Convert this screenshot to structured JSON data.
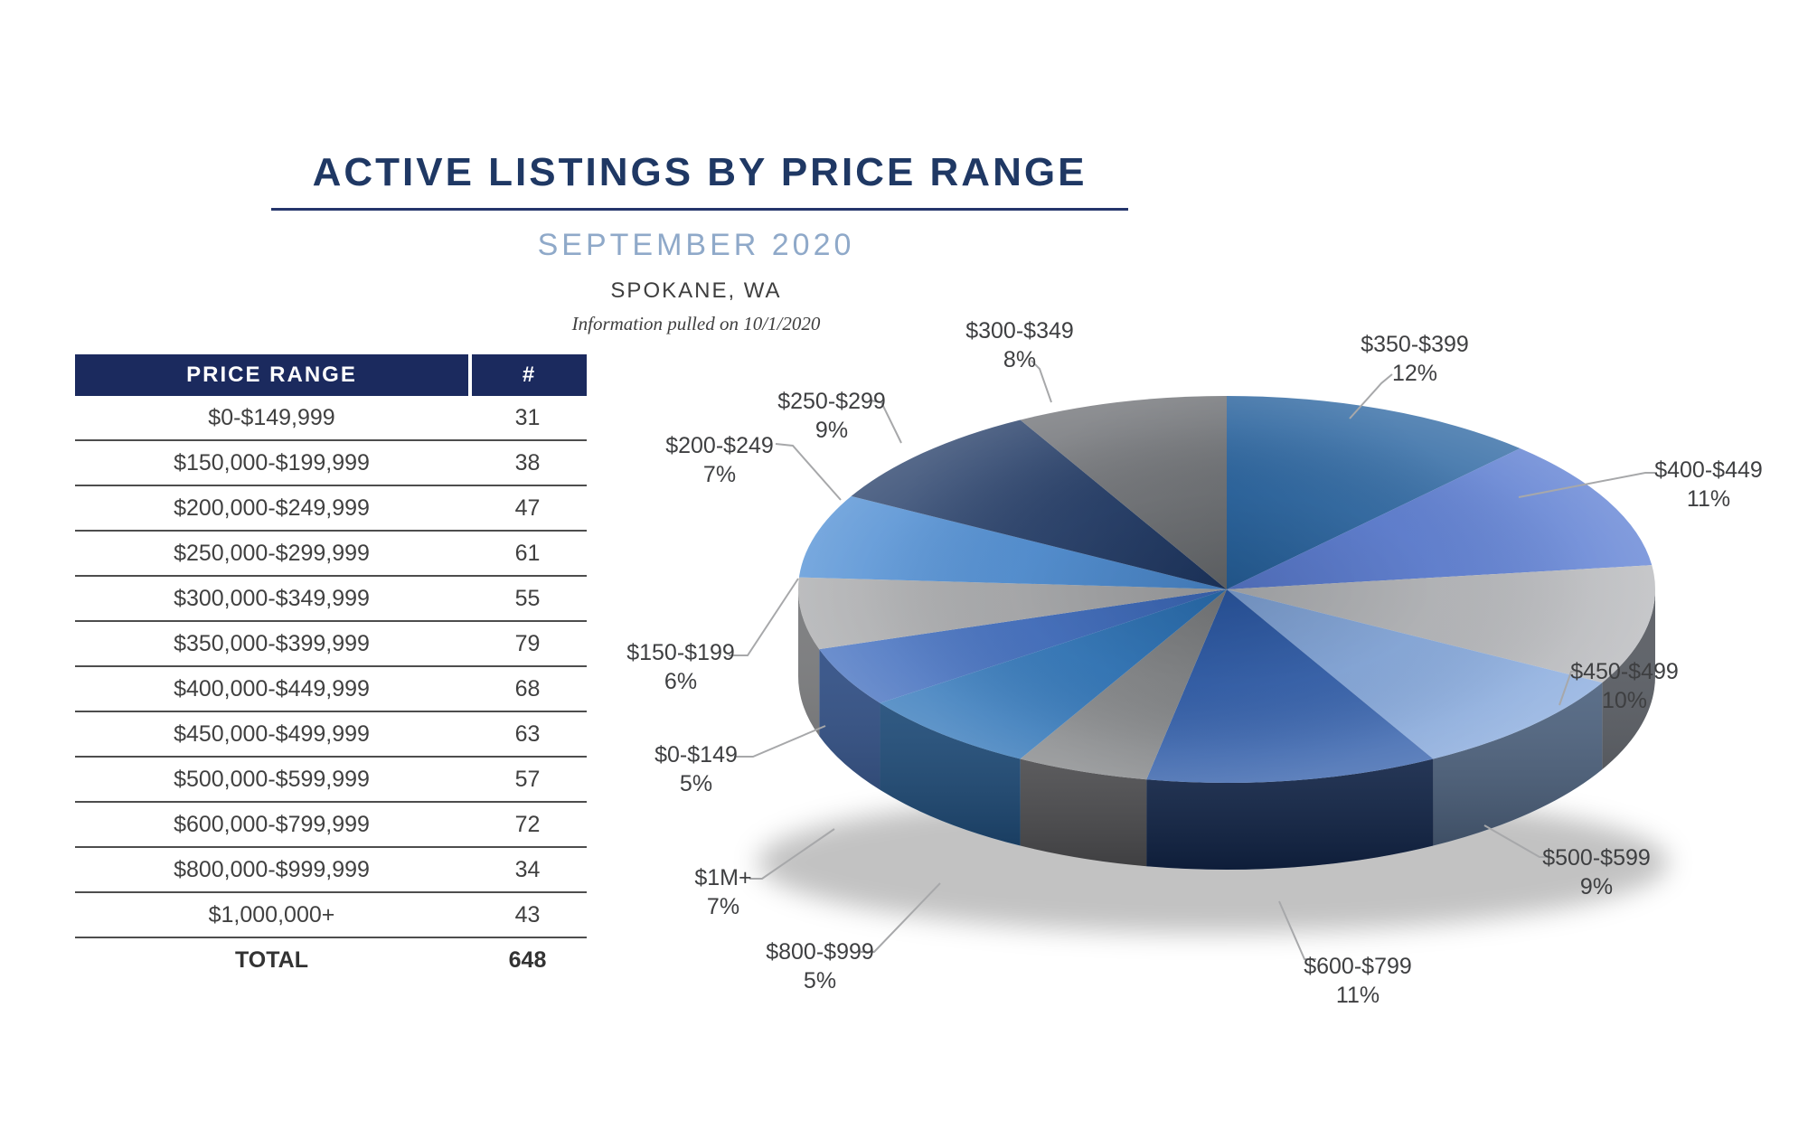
{
  "header": {
    "title": "ACTIVE LISTINGS BY PRICE RANGE",
    "subtitle": "SEPTEMBER 2020",
    "location": "SPOKANE, WA",
    "note": "Information pulled on 10/1/2020"
  },
  "table": {
    "columns": [
      "PRICE RANGE",
      "#"
    ],
    "rows": [
      {
        "range": "$0-$149,999",
        "count": "31"
      },
      {
        "range": "$150,000-$199,999",
        "count": "38"
      },
      {
        "range": "$200,000-$249,999",
        "count": "47"
      },
      {
        "range": "$250,000-$299,999",
        "count": "61"
      },
      {
        "range": "$300,000-$349,999",
        "count": "55"
      },
      {
        "range": "$350,000-$399,999",
        "count": "79"
      },
      {
        "range": "$400,000-$449,999",
        "count": "68"
      },
      {
        "range": "$450,000-$499,999",
        "count": "63"
      },
      {
        "range": "$500,000-$599,999",
        "count": "57"
      },
      {
        "range": "$600,000-$799,999",
        "count": "72"
      },
      {
        "range": "$800,000-$999,999",
        "count": "34"
      },
      {
        "range": "$1,000,000+",
        "count": "43"
      }
    ],
    "total_label": "TOTAL",
    "total_value": "648"
  },
  "chart_data": {
    "type": "pie",
    "style": "3d",
    "legend_position": "none",
    "label_format": "category + percent",
    "start_angle_deg": 234,
    "slices": [
      {
        "label": "$0-$149",
        "pct": 5,
        "color": "#3D6BBE",
        "side_color": "#2A4B85"
      },
      {
        "label": "$150-$199",
        "pct": 6,
        "color": "#A7A8AA",
        "side_color": "#757678"
      },
      {
        "label": "$200-$249",
        "pct": 7,
        "color": "#4C8CD3",
        "side_color": "#35628F"
      },
      {
        "label": "$250-$299",
        "pct": 9,
        "color": "#1F3864",
        "side_color": "#152744"
      },
      {
        "label": "$300-$349",
        "pct": 8,
        "color": "#696C70",
        "side_color": "#484A4E"
      },
      {
        "label": "$350-$399",
        "pct": 12,
        "color": "#26629E",
        "side_color": "#17406B"
      },
      {
        "label": "$400-$449",
        "pct": 11,
        "color": "#5A7CD2",
        "side_color": "#3E5691"
      },
      {
        "label": "$450-$499",
        "pct": 10,
        "color": "#B4B6B9",
        "side_color": "#54585F"
      },
      {
        "label": "$500-$599",
        "pct": 9,
        "color": "#83A6DB",
        "side_color": "#4E6584"
      },
      {
        "label": "$600-$799",
        "pct": 11,
        "color": "#2C5AA8",
        "side_color": "#142A52"
      },
      {
        "label": "$800-$999",
        "pct": 5,
        "color": "#7E8083",
        "side_color": "#59595C"
      },
      {
        "label": "$1M+",
        "pct": 7,
        "color": "#2B73B8",
        "side_color": "#1B4D7F"
      }
    ]
  },
  "colors": {
    "title": "#1F3864",
    "subtitle": "#8FA9C9",
    "table_header_bg": "#1B2A5E",
    "body_text": "#3F3F3F",
    "row_line": "#4D4D4D",
    "leader_line": "#A7A8AA"
  }
}
